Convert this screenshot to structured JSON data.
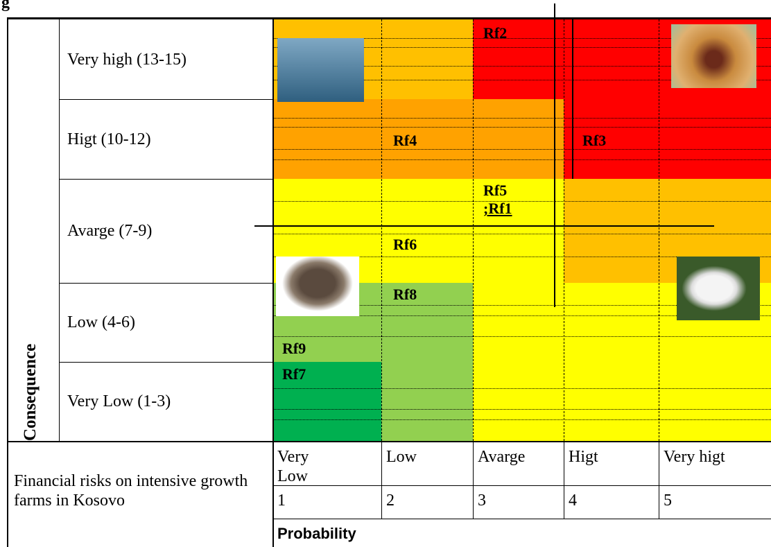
{
  "title": "g",
  "axis_label": "Consequence",
  "row_labels": [
    "Very high (13-15)",
    "Higt (10-12)",
    "Avarge (7-9)",
    "Low (4-6)",
    "Very Low (1-3)"
  ],
  "risks": [
    "Rf2",
    "Rf4",
    "Rf3",
    "Rf5",
    ";Rf1",
    "Rf6",
    "Rf8",
    "Rf9",
    "Rf7"
  ],
  "caption": "Financial risks on intensive growth farms in Kosovo",
  "probability_labels": [
    "Very Low",
    "Low",
    "Avarge",
    "Higt",
    "Very higt"
  ],
  "probability_numbers": [
    "1",
    "2",
    "3",
    "4",
    "5"
  ],
  "probability_title": "Probability"
}
